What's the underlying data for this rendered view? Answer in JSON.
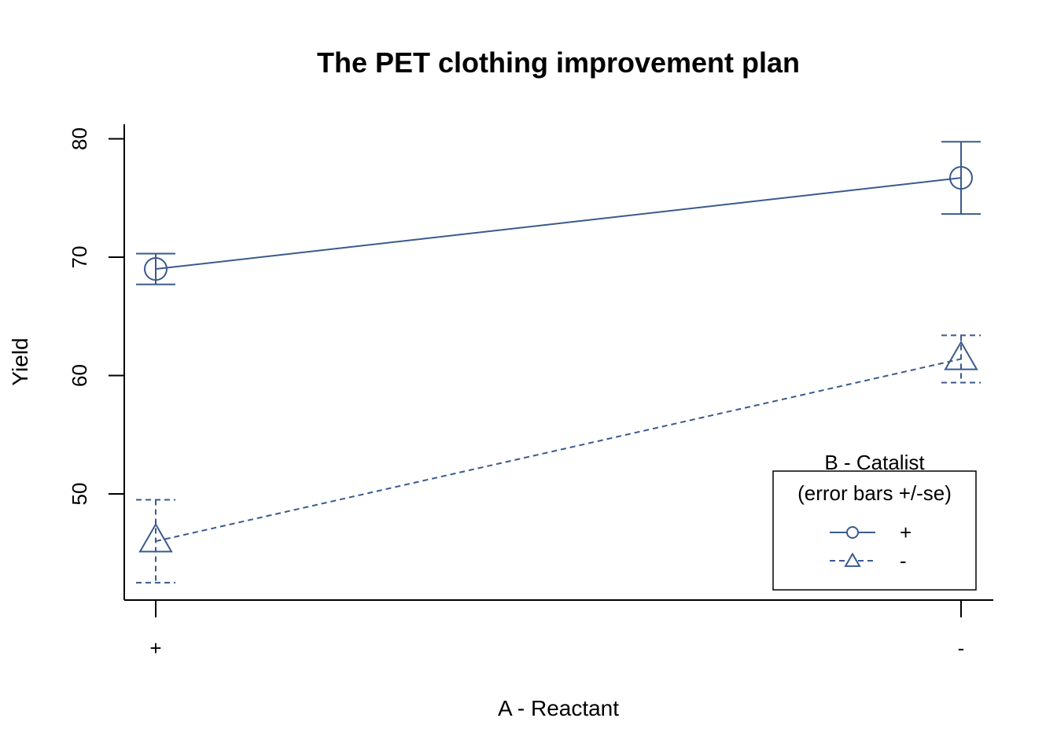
{
  "chart_data": {
    "type": "line",
    "title": "The PET clothing improvement plan",
    "xlabel": "A - Reactant",
    "ylabel": "Yield",
    "categories": [
      "+",
      "-"
    ],
    "yticks": [
      50,
      60,
      70,
      80
    ],
    "ylim": [
      41,
      81.2
    ],
    "legend": {
      "title_line1": "B - Catalist",
      "title_line2": "(error bars +/-se)",
      "placement": "bottom-right"
    },
    "series": [
      {
        "name": "+",
        "marker": "circle",
        "line_style": "solid",
        "values": [
          69.0,
          76.7
        ],
        "se": [
          1.3,
          3.05
        ]
      },
      {
        "name": "-",
        "marker": "triangle",
        "line_style": "dashed",
        "values": [
          46.0,
          61.4
        ],
        "se": [
          3.5,
          2.0
        ]
      }
    ],
    "color": "#3a5a8c",
    "grid": false
  }
}
